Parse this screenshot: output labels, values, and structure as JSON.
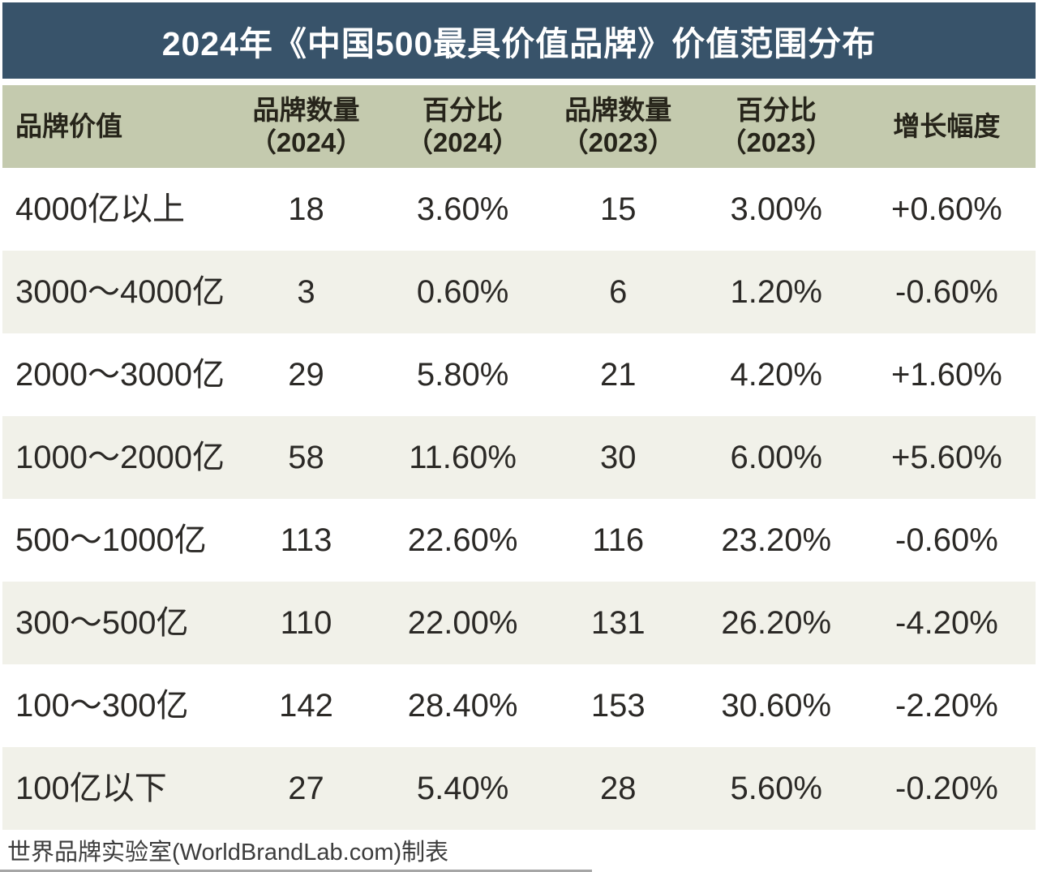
{
  "page": {
    "title": "2024年《中国500最具价值品牌》价值范围分布"
  },
  "colors": {
    "title_bar_bg": "#38536A",
    "title_text": "#FFFFFF",
    "header_bg": "#C4CAAE",
    "row_bg": "#FFFFFF",
    "row_alt_bg": "#F1F1E9",
    "body_text": "#2B2926"
  },
  "table": {
    "headers": [
      {
        "line1": "品牌价值",
        "line2": ""
      },
      {
        "line1": "品牌数量",
        "line2": "（2024）"
      },
      {
        "line1": "百分比",
        "line2": "（2024）"
      },
      {
        "line1": "品牌数量",
        "line2": "（2023）"
      },
      {
        "line1": "百分比",
        "line2": "（2023）"
      },
      {
        "line1": "增长幅度",
        "line2": ""
      }
    ]
  },
  "chart_data": {
    "type": "table",
    "title": "2024年《中国500最具价值品牌》价值范围分布",
    "columns": [
      "品牌价值",
      "品牌数量（2024）",
      "百分比（2024）",
      "品牌数量（2023）",
      "百分比（2023）",
      "增长幅度"
    ],
    "rows": [
      [
        "4000亿以上",
        "18",
        "3.60%",
        "15",
        "3.00%",
        "+0.60%"
      ],
      [
        "3000～4000亿",
        "3",
        "0.60%",
        "6",
        "1.20%",
        "-0.60%"
      ],
      [
        "2000～3000亿",
        "29",
        "5.80%",
        "21",
        "4.20%",
        "+1.60%"
      ],
      [
        "1000～2000亿",
        "58",
        "11.60%",
        "30",
        "6.00%",
        "+5.60%"
      ],
      [
        "500～1000亿",
        "113",
        "22.60%",
        "116",
        "23.20%",
        "-0.60%"
      ],
      [
        "300～500亿",
        "110",
        "22.00%",
        "131",
        "26.20%",
        "-4.20%"
      ],
      [
        "100～300亿",
        "142",
        "28.40%",
        "153",
        "30.60%",
        "-2.20%"
      ],
      [
        "100亿以下",
        "27",
        "5.40%",
        "28",
        "5.60%",
        "-0.20%"
      ]
    ]
  },
  "footer": {
    "credit": "世界品牌实验室(WorldBrandLab.com)制表"
  }
}
